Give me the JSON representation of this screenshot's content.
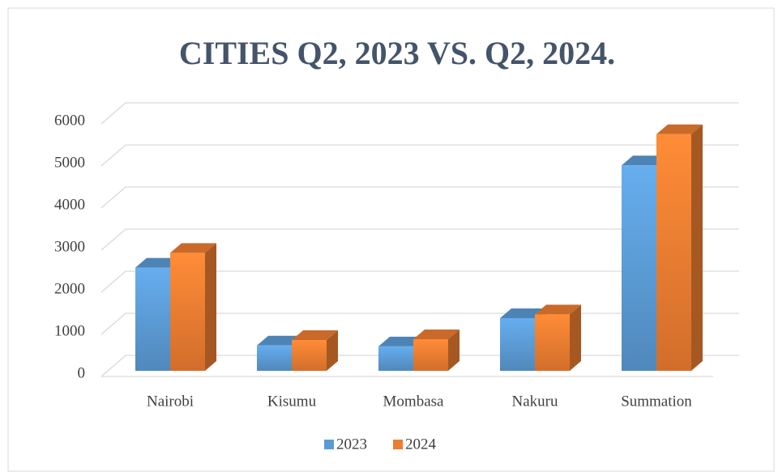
{
  "chart_data": {
    "type": "bar3d",
    "title": "CITIES Q2, 2023 VS. Q2, 2024.",
    "categories": [
      "Nairobi",
      "Kisumu",
      "Mombasa",
      "Nakuru",
      "Summation"
    ],
    "series": [
      {
        "name": "2023",
        "color": "#5b9bd5",
        "values": [
          2450,
          600,
          580,
          1250,
          4880
        ]
      },
      {
        "name": "2024",
        "color": "#ed7d31",
        "values": [
          2800,
          730,
          750,
          1340,
          5620
        ]
      }
    ],
    "ylim": [
      0,
      6000
    ],
    "yticks": [
      0,
      1000,
      2000,
      3000,
      4000,
      5000,
      6000
    ],
    "grid": true,
    "legend": "bottom"
  }
}
